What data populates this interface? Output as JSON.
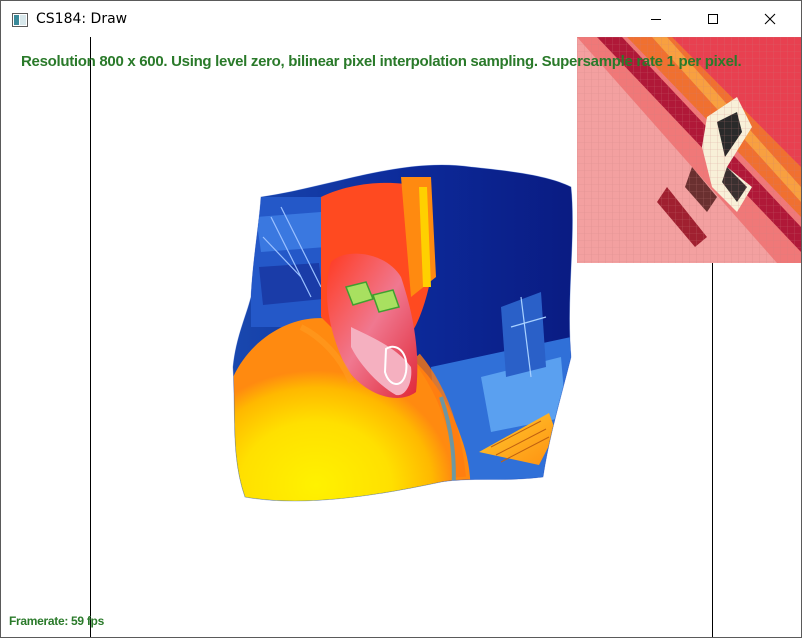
{
  "window": {
    "title": "CS184: Draw",
    "icon": "app-window-icon",
    "controls": {
      "minimize": "minimize-icon",
      "maximize": "maximize-icon",
      "close": "close-icon"
    }
  },
  "canvas": {
    "status_text": "Resolution 800 x 600. Using level zero, bilinear pixel interpolation sampling. Supersample rate 1 per pixel.",
    "framerate_text": "Framerate: 59 fps",
    "colors": {
      "status_text": "#2a7a2a",
      "background": "#ffffff",
      "guide_lines": "#000000"
    }
  },
  "zoom_inset": {
    "pixel_grid": true,
    "colors": {
      "base": "#f3a0a0",
      "band_dark": "#b01838",
      "band_orange": "#f07030",
      "band_red": "#e84050",
      "highlight": "#f8f0d8",
      "grid": "#c88080"
    }
  },
  "warped_texture": {
    "description_colors": [
      "#0a1a8a",
      "#2a5ad0",
      "#ffe000",
      "#ff7010",
      "#e02030",
      "#f088a0"
    ]
  }
}
